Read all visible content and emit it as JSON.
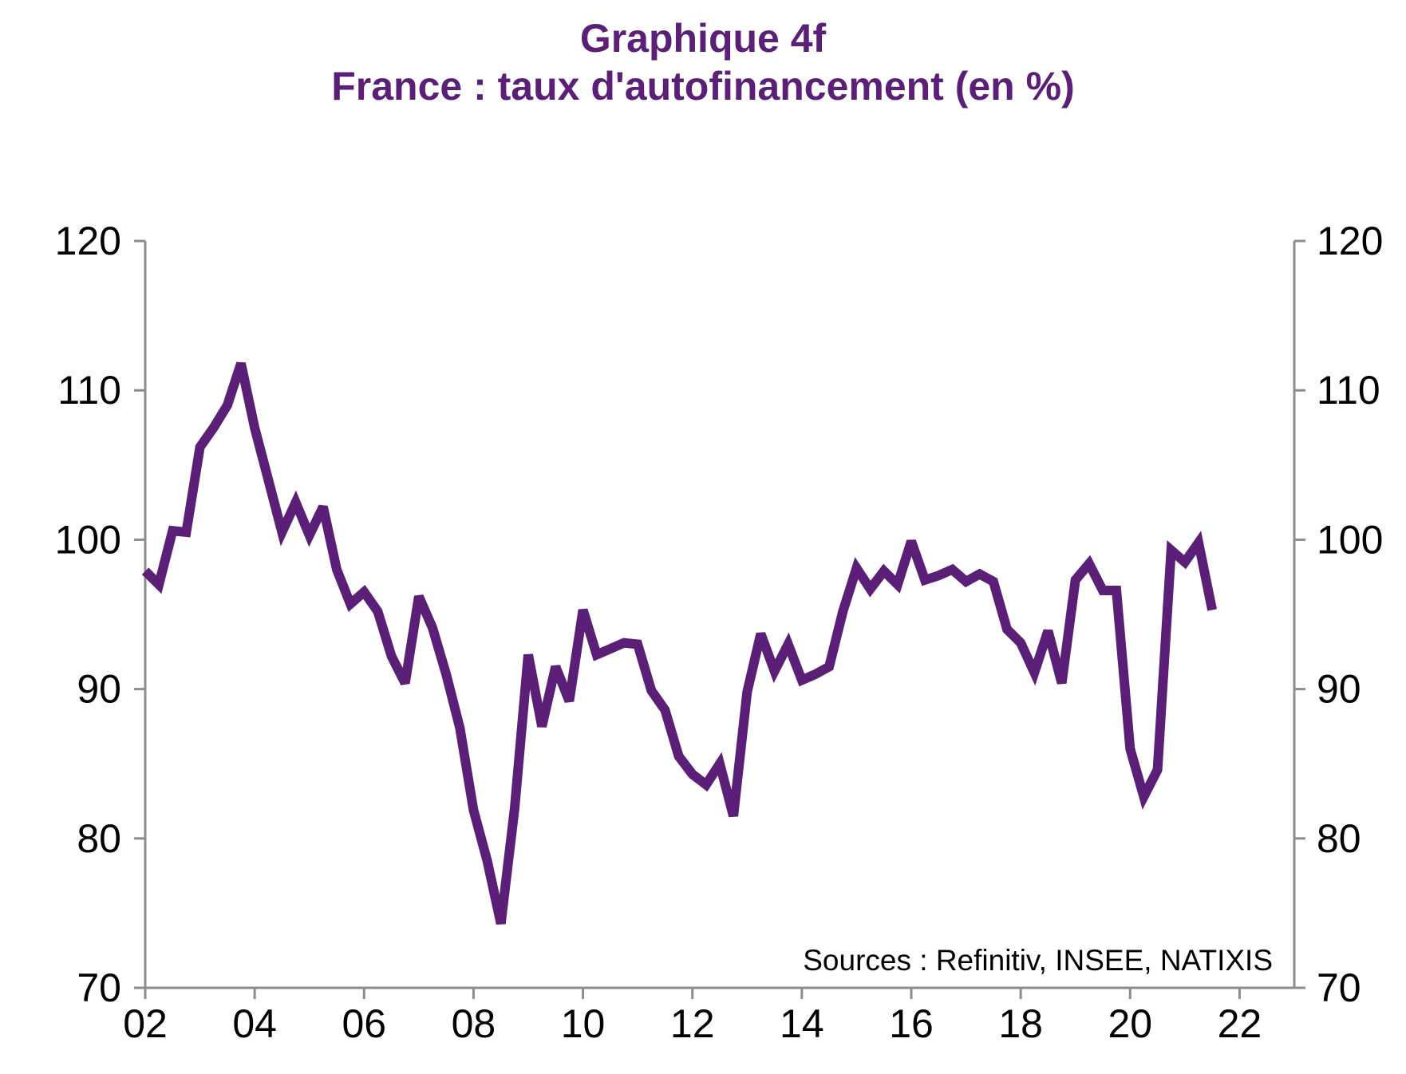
{
  "chart_data": {
    "type": "line",
    "title": "Graphique 4f",
    "subtitle": "France : taux d'autofinancement (en %)",
    "xlabel": "",
    "ylabel": "",
    "ylim": [
      70,
      120
    ],
    "xlim": [
      2002,
      2023
    ],
    "yticks": [
      70,
      80,
      90,
      100,
      110,
      120
    ],
    "xticks": [
      2002,
      2004,
      2006,
      2008,
      2010,
      2012,
      2014,
      2016,
      2018,
      2020,
      2022
    ],
    "xtick_labels": [
      "02",
      "04",
      "06",
      "08",
      "10",
      "12",
      "14",
      "16",
      "18",
      "20",
      "22"
    ],
    "ytick_labels_left": [
      "70",
      "80",
      "90",
      "100",
      "110",
      "120"
    ],
    "ytick_labels_right": [
      "70",
      "80",
      "90",
      "100",
      "110",
      "120"
    ],
    "grid": false,
    "legend": "none",
    "line_color": "#5b1f78",
    "axis_color": "#8c8c8c",
    "annotation": "Sources :  Refinitiv, INSEE, NATIXIS",
    "series": [
      {
        "x": [
          2002.0,
          2002.25,
          2002.5,
          2002.75,
          2003.0,
          2003.25,
          2003.5,
          2003.75,
          2004.0,
          2004.25,
          2004.5,
          2004.75,
          2005.0,
          2005.25,
          2005.5,
          2005.75,
          2006.0,
          2006.25,
          2006.5,
          2006.75,
          2007.0,
          2007.25,
          2007.5,
          2007.75,
          2008.0,
          2008.25,
          2008.5,
          2008.75,
          2009.0,
          2009.25,
          2009.5,
          2009.75,
          2010.0,
          2010.25,
          2010.5,
          2010.75,
          2011.0,
          2011.25,
          2011.5,
          2011.75,
          2012.0,
          2012.25,
          2012.5,
          2012.75,
          2013.0,
          2013.25,
          2013.5,
          2013.75,
          2014.0,
          2014.25,
          2014.5,
          2014.75,
          2015.0,
          2015.25,
          2015.5,
          2015.75,
          2016.0,
          2016.25,
          2016.5,
          2016.75,
          2017.0,
          2017.25,
          2017.5,
          2017.75,
          2018.0,
          2018.25,
          2018.5,
          2018.75,
          2019.0,
          2019.25,
          2019.5,
          2019.75,
          2020.0,
          2020.25,
          2020.5,
          2020.75,
          2021.0,
          2021.25,
          2021.5
        ],
        "values": [
          97.9,
          97.0,
          100.6,
          100.5,
          106.2,
          107.5,
          109.0,
          111.8,
          107.5,
          104.0,
          100.5,
          102.5,
          100.3,
          102.2,
          98.0,
          95.7,
          96.5,
          95.2,
          92.2,
          90.4,
          96.2,
          94.1,
          91.0,
          87.4,
          81.9,
          78.5,
          74.3,
          82.0,
          92.3,
          87.5,
          91.5,
          89.2,
          95.3,
          92.3,
          92.7,
          93.1,
          93.0,
          89.9,
          88.6,
          85.5,
          84.3,
          83.6,
          85.0,
          81.5,
          89.8,
          93.7,
          91.2,
          93.0,
          90.6,
          91.0,
          91.5,
          95.2,
          98.1,
          96.7,
          97.9,
          97.0,
          99.9,
          97.3,
          97.6,
          98.0,
          97.2,
          97.7,
          97.2,
          94.0,
          93.1,
          91.1,
          93.9,
          90.4,
          97.3,
          98.4,
          96.6,
          96.6,
          86.0,
          82.8,
          84.6,
          99.3,
          98.5,
          99.8,
          95.3
        ]
      }
    ]
  }
}
